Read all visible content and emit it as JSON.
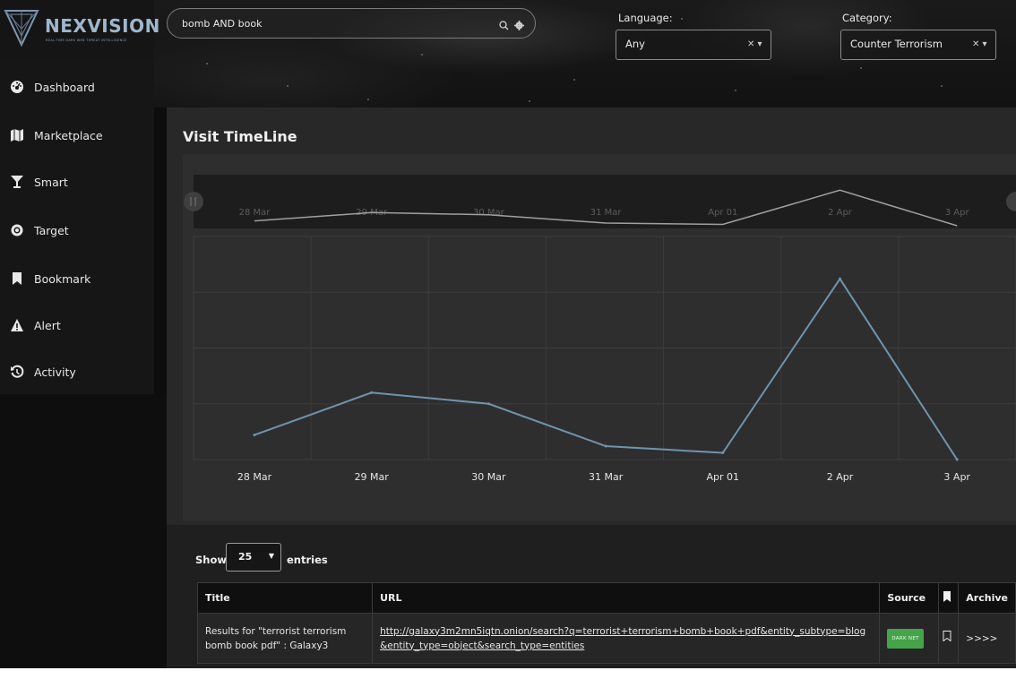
{
  "brand": {
    "name": "NEXVISION",
    "tagline": "REAL-TIME DARK WEB THREAT INTELLIGENCE"
  },
  "sidebar": {
    "items": [
      {
        "label": "Dashboard",
        "icon": "dashboard-icon"
      },
      {
        "label": "Marketplace",
        "icon": "map-icon"
      },
      {
        "label": "Smart",
        "icon": "cocktail-icon"
      },
      {
        "label": "Target",
        "icon": "target-icon"
      },
      {
        "label": "Bookmark",
        "icon": "bookmark-icon"
      },
      {
        "label": "Alert",
        "icon": "warning-icon"
      },
      {
        "label": "Activity",
        "icon": "history-icon"
      }
    ]
  },
  "search": {
    "value": "bomb AND book",
    "icons": [
      "search-icon",
      "gear-icon"
    ]
  },
  "filters": {
    "language": {
      "label": "Language:",
      "value": "Any"
    },
    "category": {
      "label": "Category:",
      "value": "Counter Terrorism"
    }
  },
  "panel": {
    "title": "Visit TimeLine"
  },
  "chart_data": {
    "type": "line",
    "title": "",
    "xlabel": "",
    "ylabel": "",
    "categories": [
      "28 Mar",
      "29 Mar",
      "30 Mar",
      "31 Mar",
      "Apr 01",
      "2 Apr",
      "3 Apr"
    ],
    "series": [
      {
        "values": [
          1.1,
          3.0,
          2.5,
          0.6,
          0.3,
          8.1,
          0.0
        ]
      }
    ],
    "ylim": [
      0,
      10
    ],
    "grid": true,
    "navigator": true,
    "line_color": "#6f94ad",
    "navigator_line_color": "#a0a0a0"
  },
  "table": {
    "show_label": "Show",
    "entries_value": "25",
    "entries_label": "entries",
    "columns": [
      "Title",
      "URL",
      "Source",
      "",
      "Archive"
    ],
    "rows": [
      {
        "title": "Results for \"terrorist terrorism bomb book pdf\" : Galaxy3",
        "url": "http://galaxy3m2mn5iqtn.onion/search?q=terrorist+terrorism+bomb+book+pdf&entity_subtype=blog&entity_type=object&search_type=entities",
        "source": "DARK NET",
        "archive": ">>>>"
      }
    ]
  }
}
